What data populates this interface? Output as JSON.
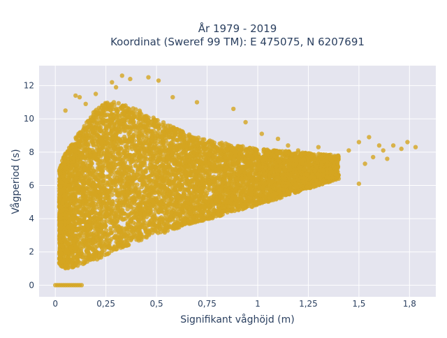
{
  "chart_data": {
    "type": "scatter",
    "title_line1": "År 1979 - 2019",
    "title_line2": "Koordinat (Sweref 99 TM): E 475075, N 6207691",
    "xlabel": "Signifikant våghöjd (m)",
    "ylabel": "Vågperiod (s)",
    "xlim": [
      -0.08,
      1.88
    ],
    "ylim": [
      -0.7,
      13.2
    ],
    "x_ticks": [
      0,
      0.25,
      0.5,
      0.75,
      1,
      1.25,
      1.5,
      1.75
    ],
    "x_tick_labels": [
      "0",
      "0,25",
      "0,5",
      "0,75",
      "1",
      "1,25",
      "1,5",
      "1,8"
    ],
    "y_ticks": [
      0,
      2,
      4,
      6,
      8,
      10,
      12
    ],
    "y_tick_labels": [
      "0",
      "2",
      "4",
      "6",
      "8",
      "10",
      "12"
    ],
    "grid": true,
    "marker_color": "#d4a520",
    "plot_bg": "#e5e5ef",
    "band": {
      "x": [
        0.02,
        0.05,
        0.1,
        0.15,
        0.2,
        0.25,
        0.3,
        0.4,
        0.5,
        0.6,
        0.7,
        0.8,
        0.9,
        1.0,
        1.1,
        1.2,
        1.3,
        1.4
      ],
      "lower": [
        1.2,
        1.0,
        1.1,
        1.3,
        1.5,
        1.8,
        2.1,
        2.6,
        3.0,
        3.4,
        3.8,
        4.1,
        4.5,
        4.8,
        5.2,
        5.6,
        6.0,
        6.4
      ],
      "upper": [
        7.0,
        8.0,
        8.9,
        9.7,
        10.6,
        11.0,
        11.0,
        10.6,
        10.0,
        9.4,
        8.9,
        8.6,
        8.4,
        8.2,
        8.1,
        8.0,
        7.9,
        7.8
      ]
    },
    "zero_points_x": [
      0.0,
      0.01,
      0.02,
      0.03,
      0.04,
      0.05,
      0.06,
      0.07,
      0.08,
      0.09,
      0.1,
      0.11,
      0.12,
      0.13
    ],
    "outliers": [
      {
        "x": 0.28,
        "y": 12.2
      },
      {
        "x": 0.33,
        "y": 12.6
      },
      {
        "x": 0.37,
        "y": 12.4
      },
      {
        "x": 0.46,
        "y": 12.5
      },
      {
        "x": 0.51,
        "y": 12.3
      },
      {
        "x": 0.3,
        "y": 11.9
      },
      {
        "x": 0.58,
        "y": 11.3
      },
      {
        "x": 0.7,
        "y": 11.0
      },
      {
        "x": 0.88,
        "y": 10.6
      },
      {
        "x": 0.94,
        "y": 9.8
      },
      {
        "x": 1.02,
        "y": 9.1
      },
      {
        "x": 1.1,
        "y": 8.8
      },
      {
        "x": 1.15,
        "y": 8.4
      },
      {
        "x": 1.2,
        "y": 8.1
      },
      {
        "x": 1.25,
        "y": 7.9
      },
      {
        "x": 1.3,
        "y": 8.3
      },
      {
        "x": 1.36,
        "y": 7.7
      },
      {
        "x": 1.4,
        "y": 6.4
      },
      {
        "x": 1.45,
        "y": 8.1
      },
      {
        "x": 1.5,
        "y": 8.6
      },
      {
        "x": 1.53,
        "y": 7.3
      },
      {
        "x": 1.55,
        "y": 8.9
      },
      {
        "x": 1.57,
        "y": 7.7
      },
      {
        "x": 1.6,
        "y": 8.4
      },
      {
        "x": 1.62,
        "y": 8.1
      },
      {
        "x": 1.64,
        "y": 7.6
      },
      {
        "x": 1.67,
        "y": 8.4
      },
      {
        "x": 1.71,
        "y": 8.2
      },
      {
        "x": 1.74,
        "y": 8.6
      },
      {
        "x": 1.78,
        "y": 8.3
      },
      {
        "x": 0.1,
        "y": 11.4
      },
      {
        "x": 0.12,
        "y": 11.3
      },
      {
        "x": 0.05,
        "y": 10.5
      },
      {
        "x": 0.15,
        "y": 10.9
      },
      {
        "x": 0.2,
        "y": 11.5
      },
      {
        "x": 1.5,
        "y": 6.1
      }
    ]
  }
}
